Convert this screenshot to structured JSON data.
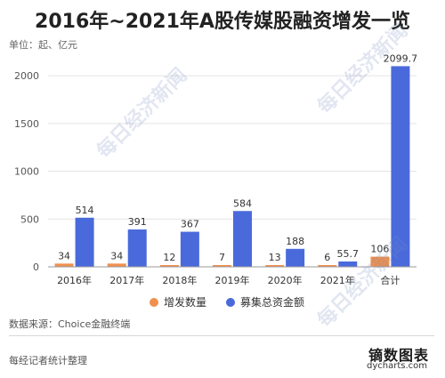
{
  "title": "2016年~2021年A股传媒股融资增发一览",
  "unit_label": "单位：起、亿元",
  "source": "数据来源：Choice金融终端",
  "note": "每经记者统计整理",
  "brand": {
    "name": "镝数图表",
    "url": "dycharts.com"
  },
  "watermark": "每日经济新闻",
  "colors": {
    "count": "#F0904E",
    "amount": "#4A6ADB",
    "grid": "#e4e4e4",
    "axis": "#999999"
  },
  "chart_data": {
    "type": "bar",
    "categories": [
      "2016年",
      "2017年",
      "2018年",
      "2019年",
      "2020年",
      "2021年",
      "合计"
    ],
    "series": [
      {
        "name": "增发数量",
        "values": [
          34,
          34,
          12,
          7,
          13,
          6,
          106
        ],
        "labels": [
          "34",
          "34",
          "12",
          "7",
          "13",
          "6",
          "106"
        ]
      },
      {
        "name": "募集总资金额",
        "values": [
          514,
          391,
          367,
          584,
          188,
          55.7,
          2099.7
        ],
        "labels": [
          "514",
          "391",
          "367",
          "584",
          "188",
          "55.7",
          "2099.7"
        ]
      }
    ],
    "ylim": [
      0,
      2150
    ],
    "yticks": [
      0,
      500,
      1000,
      1500,
      2000
    ],
    "legend_position": "bottom",
    "grid": true
  }
}
